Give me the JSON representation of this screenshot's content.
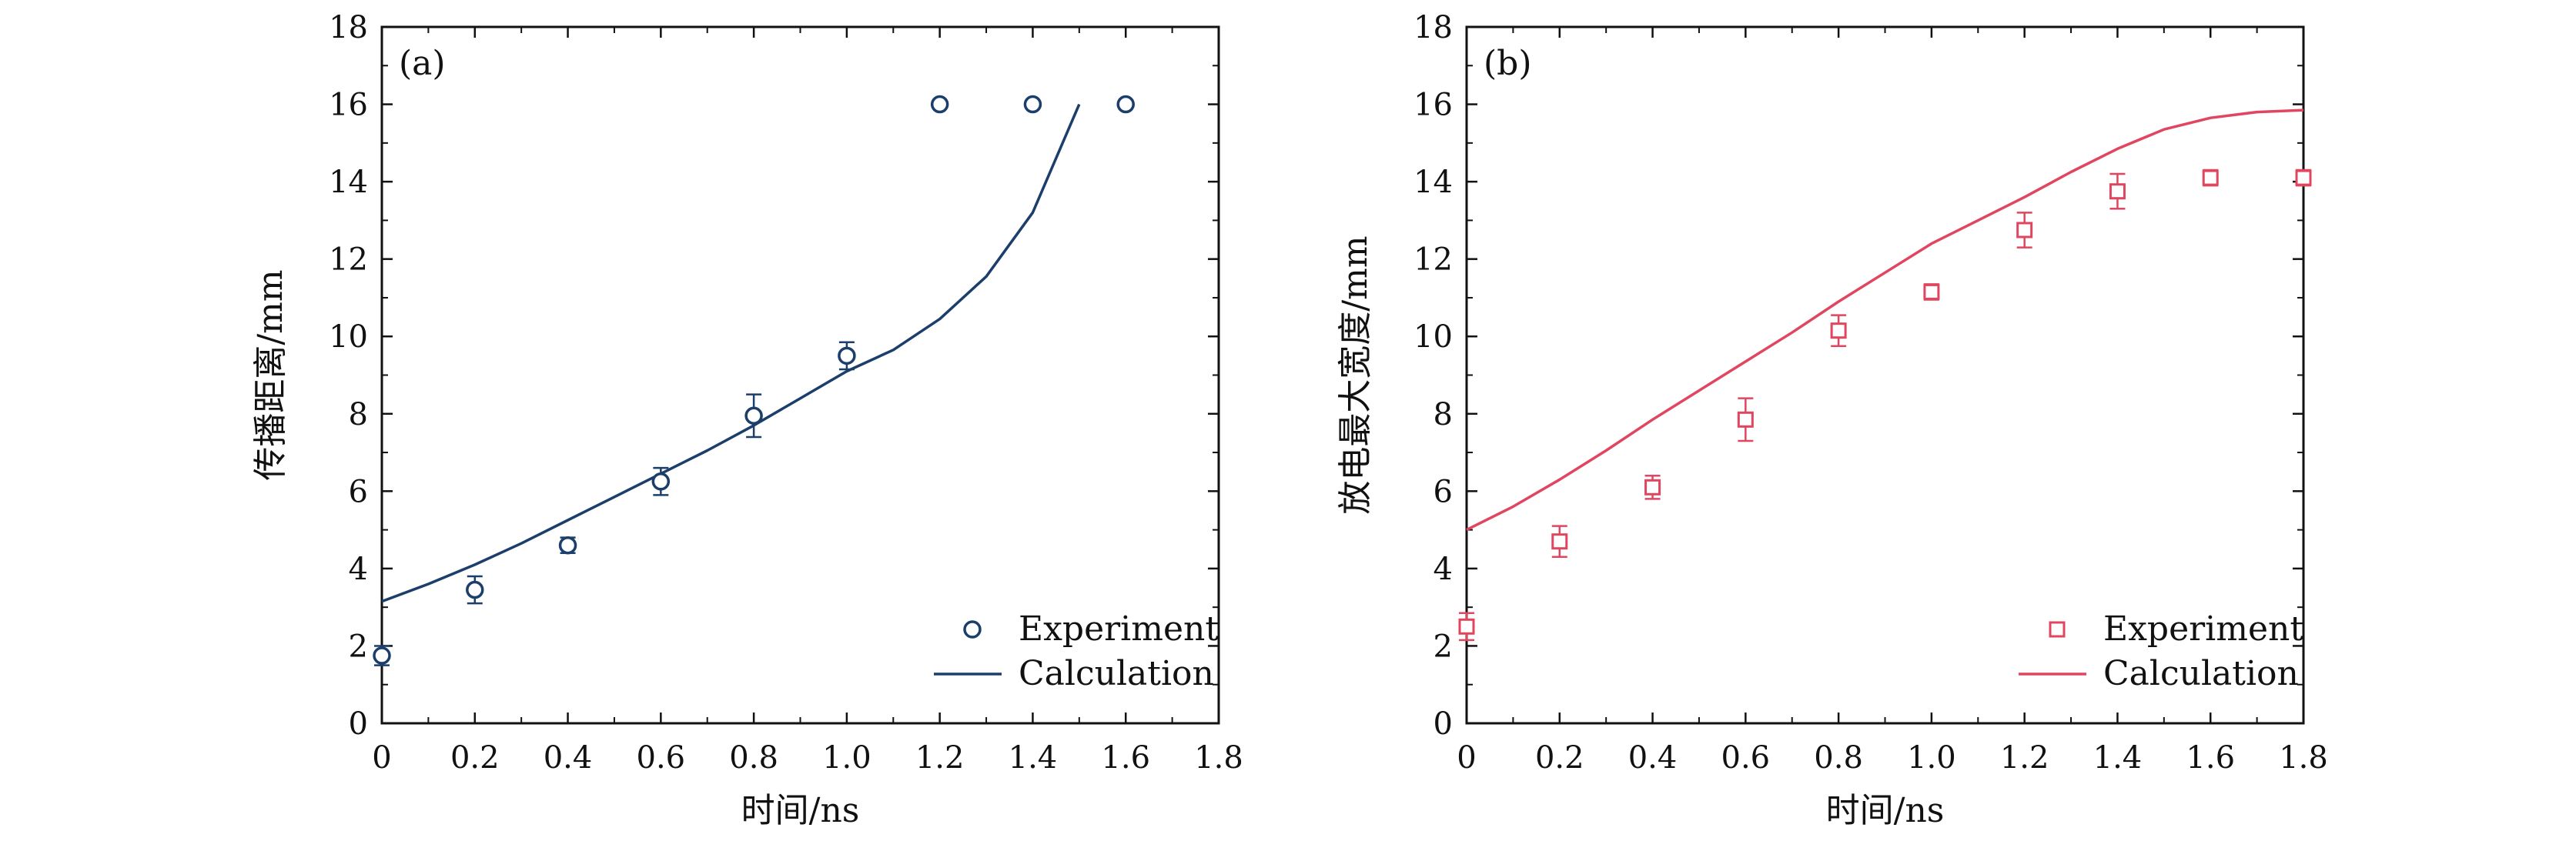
{
  "chart_data": [
    {
      "type": "line+scatter",
      "panel_label": "(a)",
      "xlabel": "时间/ns",
      "ylabel": "传播距离/mm",
      "xlim": [
        0,
        1.8
      ],
      "ylim": [
        0,
        18
      ],
      "xticks": [
        "0",
        "0.2",
        "0.4",
        "0.6",
        "0.8",
        "1.0",
        "1.2",
        "1.4",
        "1.6",
        "1.8"
      ],
      "yticks": [
        "0",
        "2",
        "4",
        "6",
        "8",
        "10",
        "12",
        "14",
        "16",
        "18"
      ],
      "color": "#1b3e6b",
      "marker": "circle",
      "legend_position": "bottom-right",
      "series": [
        {
          "name": "Experiment",
          "kind": "scatter",
          "x": [
            0.0,
            0.2,
            0.4,
            0.6,
            0.8,
            1.0,
            1.2,
            1.4,
            1.6
          ],
          "y": [
            1.75,
            3.45,
            4.6,
            6.25,
            7.95,
            9.5,
            16.0,
            16.0,
            16.0
          ],
          "err": [
            0.25,
            0.35,
            0.2,
            0.35,
            0.55,
            0.35,
            0,
            0,
            0
          ]
        },
        {
          "name": "Calculation",
          "kind": "line",
          "x": [
            0.0,
            0.1,
            0.2,
            0.3,
            0.4,
            0.5,
            0.6,
            0.7,
            0.8,
            0.9,
            1.0,
            1.1,
            1.2,
            1.3,
            1.4,
            1.5
          ],
          "y": [
            3.15,
            3.6,
            4.1,
            4.65,
            5.25,
            5.85,
            6.45,
            7.05,
            7.7,
            8.4,
            9.1,
            9.65,
            10.45,
            11.55,
            13.2,
            16.0
          ]
        }
      ]
    },
    {
      "type": "line+scatter",
      "panel_label": "(b)",
      "xlabel": "时间/ns",
      "ylabel": "放电最大宽度/mm",
      "xlim": [
        0,
        1.8
      ],
      "ylim": [
        0,
        18
      ],
      "xticks": [
        "0",
        "0.2",
        "0.4",
        "0.6",
        "0.8",
        "1.0",
        "1.2",
        "1.4",
        "1.6",
        "1.8"
      ],
      "yticks": [
        "0",
        "2",
        "4",
        "6",
        "8",
        "10",
        "12",
        "14",
        "16",
        "18"
      ],
      "color": "#e0465f",
      "marker": "square",
      "legend_position": "bottom-right",
      "series": [
        {
          "name": "Experiment",
          "kind": "scatter",
          "x": [
            0.0,
            0.2,
            0.4,
            0.6,
            0.8,
            1.0,
            1.2,
            1.4,
            1.6,
            1.8
          ],
          "y": [
            2.5,
            4.7,
            6.1,
            7.85,
            10.15,
            11.15,
            12.75,
            13.75,
            14.1,
            14.1
          ],
          "err": [
            0.35,
            0.4,
            0.3,
            0.55,
            0.4,
            0.2,
            0.45,
            0.45,
            0.2,
            0.2
          ]
        },
        {
          "name": "Calculation",
          "kind": "line",
          "x": [
            0.0,
            0.1,
            0.2,
            0.3,
            0.4,
            0.5,
            0.6,
            0.7,
            0.8,
            0.9,
            1.0,
            1.1,
            1.2,
            1.3,
            1.4,
            1.5,
            1.6,
            1.7,
            1.8
          ],
          "y": [
            5.0,
            5.6,
            6.3,
            7.05,
            7.85,
            8.6,
            9.35,
            10.1,
            10.9,
            11.65,
            12.4,
            13.0,
            13.6,
            14.25,
            14.85,
            15.35,
            15.65,
            15.8,
            15.85
          ]
        }
      ]
    }
  ]
}
